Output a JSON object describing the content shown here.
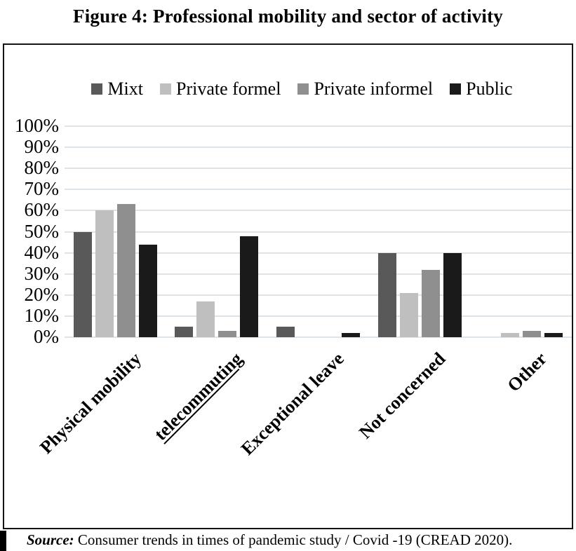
{
  "title": "Figure 4: Professional mobility and sector of activity",
  "source": {
    "prefix": "Source:",
    "text": " Consumer trends in times of pandemic study / Covid -19 (CREAD 2020)."
  },
  "chart_data": {
    "type": "bar",
    "title": "Figure 4: Professional mobility and sector of activity",
    "categories": [
      "Physical mobility",
      "telecommuting",
      "Exceptional leave",
      "Not concerned",
      "Other"
    ],
    "underlined_category": "telecommuting",
    "series": [
      {
        "name": "Mixt",
        "color": "#595959",
        "values": [
          50,
          5,
          5,
          40,
          0
        ]
      },
      {
        "name": "Private formel",
        "color": "#bfbfbf",
        "values": [
          60,
          17,
          0,
          21,
          2
        ]
      },
      {
        "name": "Private informel",
        "color": "#8f8f8f",
        "values": [
          63,
          3,
          0,
          32,
          3
        ]
      },
      {
        "name": "Public",
        "color": "#1a1a1a",
        "values": [
          44,
          48,
          2,
          40,
          2
        ]
      }
    ],
    "y_ticks": [
      "100%",
      "90%",
      "80%",
      "70%",
      "60%",
      "50%",
      "40%",
      "30%",
      "20%",
      "10%",
      "0%"
    ],
    "ylabel": "",
    "xlabel": "",
    "ylim": [
      0,
      100
    ],
    "grid": true,
    "gridline_color": "#dce4ea",
    "legend_position": "top",
    "x_label_rotation": -45
  }
}
